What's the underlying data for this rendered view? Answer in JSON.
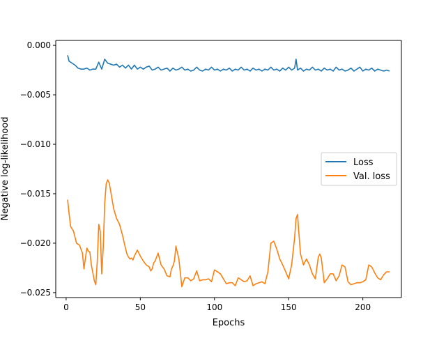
{
  "chart_data": {
    "type": "line",
    "xlabel": "Epochs",
    "ylabel": "Negative log-likelihood",
    "xlim": [
      -7,
      226
    ],
    "ylim": [
      -0.0255,
      0.0005
    ],
    "x_ticks": [
      0,
      50,
      100,
      150,
      200
    ],
    "x_tick_labels": [
      "0",
      "50",
      "100",
      "150",
      "200"
    ],
    "y_ticks": [
      0.0,
      -0.005,
      -0.01,
      -0.015,
      -0.02,
      -0.025
    ],
    "y_tick_labels": [
      "0.000",
      "−0.005",
      "−0.010",
      "−0.015",
      "−0.020",
      "−0.025"
    ],
    "grid": false,
    "legend_position": "center-right",
    "series": [
      {
        "name": "Loss",
        "color": "#1f77b4",
        "x": [
          1,
          2,
          4,
          6,
          8,
          10,
          12,
          14,
          16,
          18,
          20,
          22,
          24,
          26,
          28,
          30,
          32,
          34,
          36,
          38,
          40,
          42,
          44,
          46,
          48,
          50,
          52,
          54,
          56,
          58,
          60,
          62,
          64,
          66,
          68,
          70,
          72,
          74,
          76,
          78,
          80,
          82,
          84,
          86,
          88,
          90,
          92,
          94,
          96,
          98,
          100,
          102,
          104,
          106,
          108,
          110,
          112,
          114,
          116,
          118,
          120,
          122,
          124,
          126,
          128,
          130,
          132,
          134,
          136,
          138,
          140,
          142,
          144,
          146,
          148,
          150,
          152,
          154,
          155,
          156,
          158,
          160,
          162,
          164,
          166,
          168,
          170,
          172,
          174,
          176,
          178,
          180,
          182,
          184,
          186,
          188,
          190,
          192,
          194,
          196,
          198,
          200,
          202,
          204,
          206,
          208,
          210,
          212,
          214,
          216,
          218
        ],
        "y": [
          -0.001,
          -0.0016,
          -0.0018,
          -0.002,
          -0.0023,
          -0.0024,
          -0.0024,
          -0.0023,
          -0.0025,
          -0.0024,
          -0.0024,
          -0.0017,
          -0.0024,
          -0.0014,
          -0.0018,
          -0.0019,
          -0.002,
          -0.0019,
          -0.0022,
          -0.002,
          -0.0023,
          -0.002,
          -0.0024,
          -0.002,
          -0.0024,
          -0.0022,
          -0.0024,
          -0.0022,
          -0.0021,
          -0.0025,
          -0.0024,
          -0.0022,
          -0.0025,
          -0.0024,
          -0.0023,
          -0.0026,
          -0.0023,
          -0.0025,
          -0.0024,
          -0.0022,
          -0.0025,
          -0.0024,
          -0.0026,
          -0.0025,
          -0.0022,
          -0.0025,
          -0.0026,
          -0.0024,
          -0.0025,
          -0.0022,
          -0.0025,
          -0.0024,
          -0.0026,
          -0.0024,
          -0.0025,
          -0.0023,
          -0.0026,
          -0.0024,
          -0.0025,
          -0.0022,
          -0.0025,
          -0.0024,
          -0.0026,
          -0.0023,
          -0.0025,
          -0.0024,
          -0.0026,
          -0.0024,
          -0.0025,
          -0.0022,
          -0.0025,
          -0.0024,
          -0.0026,
          -0.0023,
          -0.0025,
          -0.0022,
          -0.0025,
          -0.0023,
          -0.0014,
          -0.0025,
          -0.0023,
          -0.0026,
          -0.0024,
          -0.0025,
          -0.0022,
          -0.0025,
          -0.0024,
          -0.0026,
          -0.0023,
          -0.0025,
          -0.0024,
          -0.0026,
          -0.0022,
          -0.0025,
          -0.0024,
          -0.0026,
          -0.0025,
          -0.0023,
          -0.0026,
          -0.0024,
          -0.0022,
          -0.0026,
          -0.0024,
          -0.0025,
          -0.0023,
          -0.0026,
          -0.0024,
          -0.0025,
          -0.0026,
          -0.0025,
          -0.0026
        ]
      },
      {
        "name": "Val. loss",
        "color": "#ff7f0e",
        "x": [
          1,
          2,
          3,
          5,
          7,
          9,
          11,
          12,
          13,
          14,
          15,
          16,
          17,
          18,
          19,
          20,
          21,
          22,
          23,
          24,
          25,
          26,
          27,
          28,
          29,
          30,
          32,
          34,
          36,
          38,
          40,
          41,
          42,
          43,
          44,
          45,
          46,
          47,
          48,
          50,
          52,
          54,
          55,
          56,
          57,
          58,
          59,
          60,
          62,
          64,
          66,
          68,
          70,
          71,
          72,
          73,
          74,
          76,
          78,
          80,
          82,
          84,
          86,
          88,
          90,
          92,
          94,
          96,
          98,
          100,
          102,
          104,
          106,
          108,
          110,
          112,
          114,
          116,
          118,
          120,
          122,
          124,
          126,
          128,
          130,
          132,
          134,
          136,
          138,
          140,
          142,
          144,
          146,
          148,
          150,
          152,
          154,
          155,
          156,
          157,
          158,
          160,
          162,
          164,
          166,
          168,
          170,
          171,
          172,
          174,
          176,
          178,
          180,
          182,
          184,
          186,
          188,
          190,
          192,
          194,
          196,
          198,
          200,
          202,
          204,
          206,
          208,
          210,
          212,
          214,
          216,
          218
        ],
        "y": [
          -0.0156,
          -0.017,
          -0.0183,
          -0.0188,
          -0.02,
          -0.0202,
          -0.021,
          -0.0226,
          -0.0215,
          -0.0205,
          -0.0208,
          -0.0209,
          -0.0222,
          -0.023,
          -0.0238,
          -0.0242,
          -0.0218,
          -0.0181,
          -0.0188,
          -0.0231,
          -0.0205,
          -0.016,
          -0.014,
          -0.0136,
          -0.0139,
          -0.0147,
          -0.0165,
          -0.0175,
          -0.0181,
          -0.0192,
          -0.0205,
          -0.0211,
          -0.0214,
          -0.0216,
          -0.0215,
          -0.0217,
          -0.0213,
          -0.021,
          -0.0207,
          -0.0213,
          -0.0218,
          -0.0222,
          -0.0223,
          -0.0224,
          -0.0228,
          -0.0226,
          -0.022,
          -0.0218,
          -0.021,
          -0.0222,
          -0.0226,
          -0.0233,
          -0.0234,
          -0.0226,
          -0.0223,
          -0.0218,
          -0.0203,
          -0.0216,
          -0.0244,
          -0.0235,
          -0.0235,
          -0.0238,
          -0.0236,
          -0.0228,
          -0.0238,
          -0.0237,
          -0.0237,
          -0.0236,
          -0.0239,
          -0.0227,
          -0.0229,
          -0.0231,
          -0.0236,
          -0.0241,
          -0.024,
          -0.024,
          -0.0243,
          -0.0235,
          -0.0237,
          -0.0239,
          -0.0238,
          -0.0233,
          -0.0243,
          -0.0241,
          -0.024,
          -0.0239,
          -0.0241,
          -0.0229,
          -0.02,
          -0.0198,
          -0.0206,
          -0.0216,
          -0.0222,
          -0.0229,
          -0.0236,
          -0.0222,
          -0.0195,
          -0.0175,
          -0.0171,
          -0.0192,
          -0.0211,
          -0.0222,
          -0.0216,
          -0.0222,
          -0.0231,
          -0.0236,
          -0.0214,
          -0.0211,
          -0.0215,
          -0.024,
          -0.0236,
          -0.0231,
          -0.0231,
          -0.0238,
          -0.0233,
          -0.0222,
          -0.0224,
          -0.0239,
          -0.0242,
          -0.0241,
          -0.024,
          -0.024,
          -0.0239,
          -0.0237,
          -0.0222,
          -0.0224,
          -0.023,
          -0.0235,
          -0.0237,
          -0.0232,
          -0.0229,
          -0.0229
        ]
      }
    ]
  }
}
